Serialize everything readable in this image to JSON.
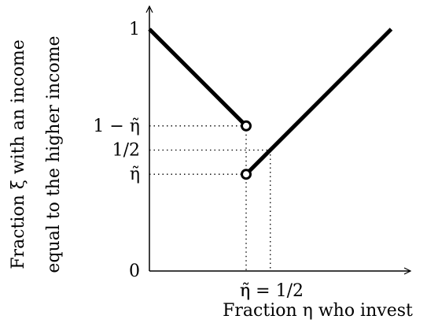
{
  "chart_data": {
    "type": "line",
    "title": "",
    "xlabel": "Fraction η who invest",
    "ylabel_lines": [
      "Fraction ξ with an income",
      "equal to the higher income"
    ],
    "params": {
      "eta_tilde": 0.4,
      "half": 0.5
    },
    "xlim": [
      0,
      1.0
    ],
    "ylim": [
      0,
      1.0
    ],
    "y_ticks": [
      {
        "value": 1,
        "label": "1"
      },
      {
        "value": 0.6,
        "label": "1 − η̃"
      },
      {
        "value": 0.5,
        "label": "1/2"
      },
      {
        "value": 0.4,
        "label": "η̃"
      },
      {
        "value": 0,
        "label": "0"
      }
    ],
    "x_ticks": [
      {
        "value": 0.4,
        "label": "η̃"
      },
      {
        "value": 0.5,
        "label": "η = 1/2"
      }
    ],
    "series": [
      {
        "points": [
          [
            0,
            1
          ],
          [
            0.4,
            0.6
          ]
        ]
      },
      {
        "points": [
          [
            0.4,
            0.4
          ],
          [
            1.0,
            1.0
          ]
        ]
      }
    ],
    "open_points": [
      [
        0.4,
        0.6
      ],
      [
        0.4,
        0.4
      ]
    ],
    "guides": [
      {
        "y": 0.6,
        "x_end": 0.4
      },
      {
        "y": 0.5,
        "x_end": 0.5
      },
      {
        "y": 0.4,
        "x_end": 0.4
      },
      {
        "x": 0.4,
        "y_end": 0.6
      },
      {
        "x": 0.5,
        "y_end": 0.5
      }
    ]
  }
}
